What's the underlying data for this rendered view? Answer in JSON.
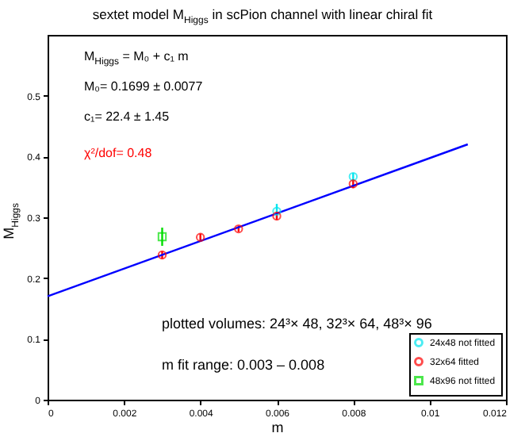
{
  "chart_data": {
    "type": "scatter",
    "title": "sextet model M$_{Higgs}$ in scPion channel with linear chiral fit",
    "xlabel": "m",
    "ylabel": "M$_{Higgs}$",
    "xlim": [
      0,
      0.012
    ],
    "xticks": [
      0,
      0.002,
      0.004,
      0.006,
      0.008,
      0.01,
      0.012
    ],
    "ylim": [
      0,
      0.6
    ],
    "yticks": [
      0,
      0.1,
      0.2,
      0.3,
      0.4,
      0.5
    ],
    "legend": "bottom right",
    "grid": false,
    "series": [
      {
        "name": "24x48 not fitted",
        "color": "#00e5ee",
        "marker": "circle",
        "x": [
          0.006,
          0.008
        ],
        "values": [
          0.31,
          0.367
        ],
        "errors": [
          0.012,
          0.006
        ]
      },
      {
        "name": "32x64 fitted",
        "color": "#ff0000",
        "marker": "circle",
        "x": [
          0.003,
          0.004,
          0.005,
          0.006,
          0.008
        ],
        "values": [
          0.238,
          0.267,
          0.281,
          0.302,
          0.355
        ],
        "errors": [
          0.006,
          0.006,
          0.005,
          0.006,
          0.007
        ]
      },
      {
        "name": "48x96 not fitted",
        "color": "#00dd00",
        "marker": "square",
        "x": [
          0.003
        ],
        "values": [
          0.268
        ],
        "errors": [
          0.015
        ]
      },
      {
        "type": "line",
        "color": "#0000ff",
        "x": [
          0,
          0.011
        ],
        "values": [
          0.17,
          0.42
        ]
      }
    ],
    "annotations": [
      "M$_{Higgs}$ = M₀ + c₁ m",
      "M₀=  0.1699 ± 0.0077",
      "c₁=  22.4 ± 1.45",
      "χ²/dof= 0.48",
      "plotted volumes:  24³× 48, 32³× 64, 48³× 96",
      "m fit range:  0.003 – 0.008"
    ]
  }
}
